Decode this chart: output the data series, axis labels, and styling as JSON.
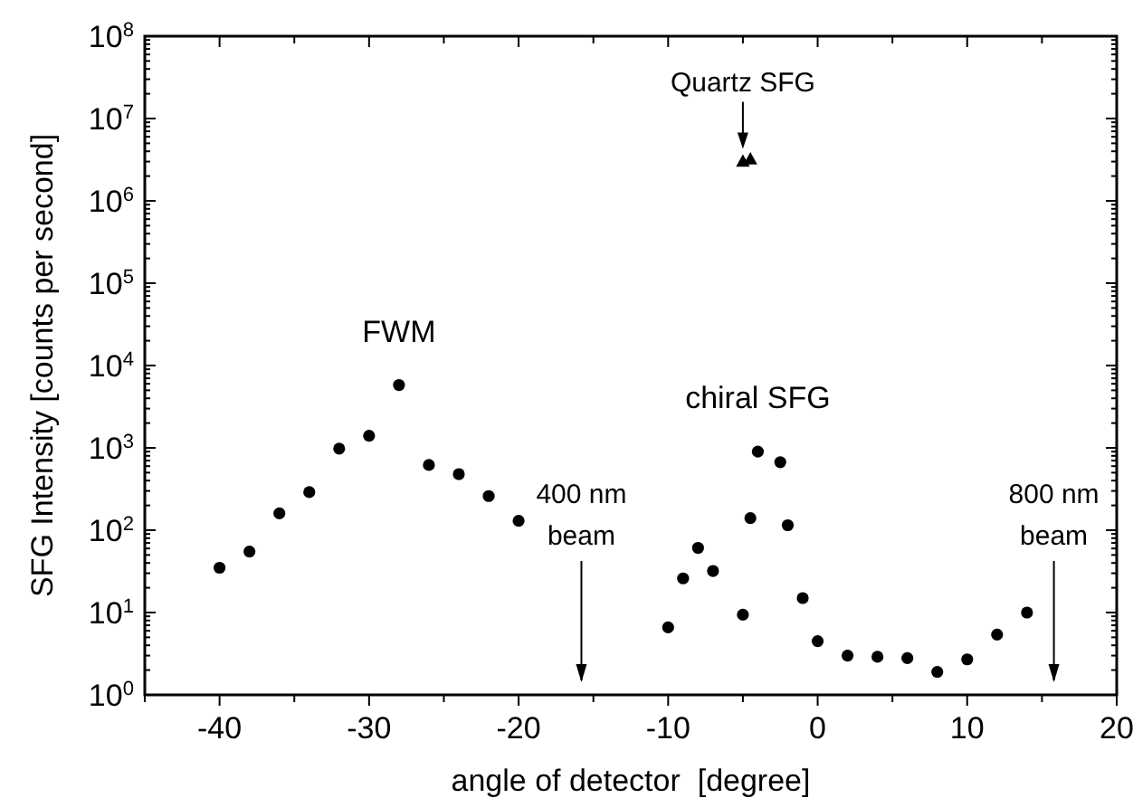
{
  "chart_data": {
    "type": "scatter",
    "xlabel": "angle of detector  [degree]",
    "ylabel": "SFG Intensity [counts per second]",
    "log": "y",
    "grid": false,
    "xlim": [
      -45,
      20
    ],
    "xticks": [
      {
        "value": -45,
        "label": null
      },
      -40,
      {
        "value": -35,
        "label": null
      },
      -30,
      {
        "value": -25,
        "label": null
      },
      -20,
      {
        "value": -15,
        "label": null
      },
      -10,
      {
        "value": -5,
        "label": null
      },
      0,
      {
        "value": 5,
        "label": null
      },
      10,
      {
        "value": 15,
        "label": null
      },
      20
    ],
    "ylim": [
      1,
      100000000
    ],
    "yticks": [
      {
        "value": 1,
        "label": "10$^{0}$"
      },
      {
        "value": 10,
        "label": "10$^{1}$"
      },
      {
        "value": 100,
        "label": "10$^{2}$"
      },
      {
        "value": 1000,
        "label": "10$^{3}$"
      },
      {
        "value": 10000,
        "label": "10$^{4}$"
      },
      {
        "value": 100000,
        "label": "10$^{5}$"
      },
      {
        "value": 1000000,
        "label": "10$^{6}$"
      },
      {
        "value": 10000000,
        "label": "10$^{7}$"
      },
      {
        "value": 100000000,
        "label": "10$^{8}$"
      }
    ],
    "series": [
      {
        "color": "#000000",
        "marker": "circle",
        "x": [
          -40,
          -38,
          -36,
          -34,
          -32,
          -30,
          -28,
          -26,
          -24,
          -22,
          -20,
          -10,
          -9,
          -8,
          -7,
          -5,
          -4.5,
          -4,
          -2.5,
          -2,
          -1,
          0,
          2,
          4,
          6,
          8,
          10,
          12,
          14
        ],
        "values": [
          35,
          55,
          160,
          290,
          980,
          1400,
          5800,
          620,
          480,
          260,
          130,
          6.6,
          26,
          61,
          32,
          9.4,
          140,
          900,
          670,
          115,
          15,
          4.5,
          3,
          2.9,
          2.8,
          1.9,
          2.7,
          5.4,
          10
        ]
      },
      {
        "color": "#000000",
        "marker": "triangle",
        "x": [
          -5,
          -4.5
        ],
        "values": [
          3000000,
          3200000
        ]
      }
    ],
    "annotations": [
      {
        "text": "FWM",
        "x": -28,
        "y": 5800
      },
      {
        "text": "chiral SFG",
        "x": -4,
        "y": 900
      },
      {
        "text": "Quartz SFG",
        "x": -5,
        "y": 3000000
      }
    ],
    "ref_lines": [
      {
        "axis": "x",
        "value": -15.8,
        "label": "400 nm beam"
      },
      {
        "axis": "x",
        "value": 15.8,
        "label": "800 nm beam"
      }
    ]
  }
}
